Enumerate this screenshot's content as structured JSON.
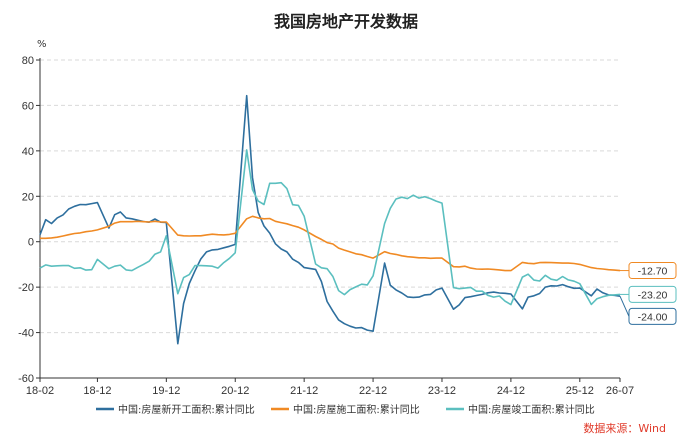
{
  "chart_data": {
    "type": "line",
    "title": "我国房地产开发数据",
    "ylabel": "%",
    "ylim": [
      -60,
      80
    ],
    "yticks": [
      -60,
      -40,
      -20,
      0,
      20,
      40,
      60,
      80
    ],
    "xlim": [
      "2018-02",
      "2026-07"
    ],
    "xticks": [
      {
        "label": "18-02",
        "date": "2018-02"
      },
      {
        "label": "18-12",
        "date": "2018-12"
      },
      {
        "label": "19-12",
        "date": "2019-12"
      },
      {
        "label": "20-12",
        "date": "2020-12"
      },
      {
        "label": "21-12",
        "date": "2021-12"
      },
      {
        "label": "22-12",
        "date": "2022-12"
      },
      {
        "label": "23-12",
        "date": "2023-12"
      },
      {
        "label": "24-12",
        "date": "2024-12"
      },
      {
        "label": "25-12",
        "date": "2025-12"
      },
      {
        "label": "26-07",
        "date": "2026-07"
      }
    ],
    "grid": "horizontal-dashed",
    "legend_position": "bottom",
    "source": "数据来源：Wind",
    "series": [
      {
        "name": "中国:房屋新开工面积:累计同比",
        "color": "#2e6f9e",
        "end_label": "-24.00",
        "points": [
          [
            "2018-02",
            3
          ],
          [
            "2018-03",
            9.7
          ],
          [
            "2018-04",
            8
          ],
          [
            "2018-05",
            10.5
          ],
          [
            "2018-06",
            11.8
          ],
          [
            "2018-07",
            14.4
          ],
          [
            "2018-08",
            15.6
          ],
          [
            "2018-09",
            16.4
          ],
          [
            "2018-10",
            16.3
          ],
          [
            "2018-11",
            16.8
          ],
          [
            "2018-12",
            17.2
          ],
          [
            "2019-02",
            6
          ],
          [
            "2019-03",
            11.9
          ],
          [
            "2019-04",
            13.1
          ],
          [
            "2019-05",
            10.5
          ],
          [
            "2019-06",
            10.1
          ],
          [
            "2019-07",
            9.5
          ],
          [
            "2019-08",
            8.9
          ],
          [
            "2019-09",
            8.6
          ],
          [
            "2019-10",
            10
          ],
          [
            "2019-11",
            8.6
          ],
          [
            "2019-12",
            8.5
          ],
          [
            "2020-02",
            -44.9
          ],
          [
            "2020-03",
            -27.2
          ],
          [
            "2020-04",
            -18.4
          ],
          [
            "2020-05",
            -12.8
          ],
          [
            "2020-06",
            -7.6
          ],
          [
            "2020-07",
            -4.5
          ],
          [
            "2020-08",
            -3.6
          ],
          [
            "2020-09",
            -3.4
          ],
          [
            "2020-10",
            -2.7
          ],
          [
            "2020-11",
            -2
          ],
          [
            "2020-12",
            -1.2
          ],
          [
            "2021-02",
            64.3
          ],
          [
            "2021-03",
            28.2
          ],
          [
            "2021-04",
            12.8
          ],
          [
            "2021-05",
            6.9
          ],
          [
            "2021-06",
            3.8
          ],
          [
            "2021-07",
            -0.9
          ],
          [
            "2021-08",
            -3.2
          ],
          [
            "2021-09",
            -4.5
          ],
          [
            "2021-10",
            -7.7
          ],
          [
            "2021-11",
            -9.1
          ],
          [
            "2021-12",
            -11.4
          ],
          [
            "2022-02",
            -12.2
          ],
          [
            "2022-03",
            -17.5
          ],
          [
            "2022-04",
            -26.3
          ],
          [
            "2022-05",
            -30.6
          ],
          [
            "2022-06",
            -34.4
          ],
          [
            "2022-07",
            -36.1
          ],
          [
            "2022-08",
            -37.2
          ],
          [
            "2022-09",
            -38
          ],
          [
            "2022-10",
            -37.8
          ],
          [
            "2022-11",
            -38.9
          ],
          [
            "2022-12",
            -39.4
          ],
          [
            "2023-02",
            -9.4
          ],
          [
            "2023-03",
            -19.2
          ],
          [
            "2023-04",
            -21.2
          ],
          [
            "2023-05",
            -22.6
          ],
          [
            "2023-06",
            -24.3
          ],
          [
            "2023-07",
            -24.5
          ],
          [
            "2023-08",
            -24.4
          ],
          [
            "2023-09",
            -23.4
          ],
          [
            "2023-10",
            -23.2
          ],
          [
            "2023-11",
            -21.2
          ],
          [
            "2023-12",
            -20.4
          ],
          [
            "2024-02",
            -29.7
          ],
          [
            "2024-03",
            -27.8
          ],
          [
            "2024-04",
            -24.6
          ],
          [
            "2024-05",
            -24.2
          ],
          [
            "2024-06",
            -23.7
          ],
          [
            "2024-07",
            -23.2
          ],
          [
            "2024-08",
            -22.5
          ],
          [
            "2024-09",
            -22.2
          ],
          [
            "2024-10",
            -22.6
          ],
          [
            "2024-11",
            -22.7
          ],
          [
            "2024-12",
            -23
          ],
          [
            "2025-02",
            -29.6
          ],
          [
            "2025-03",
            -24.4
          ],
          [
            "2025-04",
            -23.8
          ],
          [
            "2025-05",
            -22.8
          ],
          [
            "2025-06",
            -20
          ],
          [
            "2025-07",
            -19.4
          ],
          [
            "2025-08",
            -19.5
          ],
          [
            "2025-09",
            -18.9
          ],
          [
            "2025-10",
            -19.8
          ],
          [
            "2025-11",
            -20.5
          ],
          [
            "2025-12",
            -20.4
          ],
          [
            "2026-02",
            -23.8
          ],
          [
            "2026-03",
            -20.8
          ],
          [
            "2026-04",
            -22.5
          ],
          [
            "2026-05",
            -23.4
          ],
          [
            "2026-06",
            -23.6
          ],
          [
            "2026-07",
            -24
          ]
        ]
      },
      {
        "name": "中国:房屋施工面积:累计同比",
        "color": "#f08a24",
        "end_label": "-12.70",
        "points": [
          [
            "2018-02",
            1.5
          ],
          [
            "2018-03",
            1.5
          ],
          [
            "2018-04",
            1.7
          ],
          [
            "2018-05",
            2
          ],
          [
            "2018-06",
            2.5
          ],
          [
            "2018-07",
            3.1
          ],
          [
            "2018-08",
            3.6
          ],
          [
            "2018-09",
            3.9
          ],
          [
            "2018-10",
            4.4
          ],
          [
            "2018-11",
            4.7
          ],
          [
            "2018-12",
            5.2
          ],
          [
            "2019-02",
            6.8
          ],
          [
            "2019-03",
            8.2
          ],
          [
            "2019-04",
            8.8
          ],
          [
            "2019-05",
            8.8
          ],
          [
            "2019-06",
            8.8
          ],
          [
            "2019-07",
            9
          ],
          [
            "2019-08",
            8.8
          ],
          [
            "2019-09",
            8.7
          ],
          [
            "2019-10",
            9
          ],
          [
            "2019-11",
            8.7
          ],
          [
            "2019-12",
            8.7
          ],
          [
            "2020-02",
            2.9
          ],
          [
            "2020-03",
            2.6
          ],
          [
            "2020-04",
            2.5
          ],
          [
            "2020-05",
            2.6
          ],
          [
            "2020-06",
            2.6
          ],
          [
            "2020-07",
            3
          ],
          [
            "2020-08",
            3.3
          ],
          [
            "2020-09",
            3.1
          ],
          [
            "2020-10",
            3
          ],
          [
            "2020-11",
            3.2
          ],
          [
            "2020-12",
            3.7
          ],
          [
            "2021-02",
            10.1
          ],
          [
            "2021-03",
            11.2
          ],
          [
            "2021-04",
            10.5
          ],
          [
            "2021-05",
            10.1
          ],
          [
            "2021-06",
            10.2
          ],
          [
            "2021-07",
            9
          ],
          [
            "2021-08",
            8.4
          ],
          [
            "2021-09",
            7.9
          ],
          [
            "2021-10",
            7.1
          ],
          [
            "2021-11",
            6.4
          ],
          [
            "2021-12",
            5.2
          ],
          [
            "2022-02",
            2.3
          ],
          [
            "2022-03",
            1
          ],
          [
            "2022-04",
            -0.4
          ],
          [
            "2022-05",
            -1
          ],
          [
            "2022-06",
            -2.8
          ],
          [
            "2022-07",
            -3.7
          ],
          [
            "2022-08",
            -4.5
          ],
          [
            "2022-09",
            -5.3
          ],
          [
            "2022-10",
            -5.7
          ],
          [
            "2022-11",
            -6.5
          ],
          [
            "2022-12",
            -7.2
          ],
          [
            "2023-02",
            -4.4
          ],
          [
            "2023-03",
            -5.2
          ],
          [
            "2023-04",
            -5.6
          ],
          [
            "2023-05",
            -6.2
          ],
          [
            "2023-06",
            -6.6
          ],
          [
            "2023-07",
            -6.8
          ],
          [
            "2023-08",
            -7.1
          ],
          [
            "2023-09",
            -7.1
          ],
          [
            "2023-10",
            -7.3
          ],
          [
            "2023-11",
            -7.2
          ],
          [
            "2023-12",
            -7.2
          ],
          [
            "2024-02",
            -11
          ],
          [
            "2024-03",
            -11.1
          ],
          [
            "2024-04",
            -10.8
          ],
          [
            "2024-05",
            -11.6
          ],
          [
            "2024-06",
            -12
          ],
          [
            "2024-07",
            -12.1
          ],
          [
            "2024-08",
            -12
          ],
          [
            "2024-09",
            -12.2
          ],
          [
            "2024-10",
            -12.4
          ],
          [
            "2024-11",
            -12.7
          ],
          [
            "2024-12",
            -12.7
          ],
          [
            "2025-02",
            -9.1
          ],
          [
            "2025-03",
            -9.5
          ],
          [
            "2025-04",
            -9.7
          ],
          [
            "2025-05",
            -9.2
          ],
          [
            "2025-06",
            -9.1
          ],
          [
            "2025-07",
            -9.2
          ],
          [
            "2025-08",
            -9.3
          ],
          [
            "2025-09",
            -9.4
          ],
          [
            "2025-10",
            -9.4
          ],
          [
            "2025-11",
            -9.6
          ],
          [
            "2025-12",
            -10
          ],
          [
            "2026-02",
            -11.4
          ],
          [
            "2026-03",
            -11.8
          ],
          [
            "2026-04",
            -12
          ],
          [
            "2026-05",
            -12.3
          ],
          [
            "2026-06",
            -12.5
          ],
          [
            "2026-07",
            -12.7
          ]
        ]
      },
      {
        "name": "中国:房屋竣工面积:累计同比",
        "color": "#5bbfbf",
        "end_label": "-23.20",
        "points": [
          [
            "2018-02",
            -11.6
          ],
          [
            "2018-03",
            -10.2
          ],
          [
            "2018-04",
            -10.8
          ],
          [
            "2018-05",
            -10.6
          ],
          [
            "2018-06",
            -10.5
          ],
          [
            "2018-07",
            -10.5
          ],
          [
            "2018-08",
            -11.7
          ],
          [
            "2018-09",
            -11.5
          ],
          [
            "2018-10",
            -12.5
          ],
          [
            "2018-11",
            -12.3
          ],
          [
            "2018-12",
            -7.8
          ],
          [
            "2019-02",
            -11.9
          ],
          [
            "2019-03",
            -10.8
          ],
          [
            "2019-04",
            -10.3
          ],
          [
            "2019-05",
            -12.4
          ],
          [
            "2019-06",
            -12.7
          ],
          [
            "2019-07",
            -11.3
          ],
          [
            "2019-08",
            -10
          ],
          [
            "2019-09",
            -8.6
          ],
          [
            "2019-10",
            -5.5
          ],
          [
            "2019-11",
            -4.5
          ],
          [
            "2019-12",
            2.6
          ],
          [
            "2020-02",
            -22.9
          ],
          [
            "2020-03",
            -15.8
          ],
          [
            "2020-04",
            -14.5
          ],
          [
            "2020-05",
            -10.5
          ],
          [
            "2020-06",
            -10.5
          ],
          [
            "2020-07",
            -10.6
          ],
          [
            "2020-08",
            -10.8
          ],
          [
            "2020-09",
            -11.6
          ],
          [
            "2020-10",
            -9.2
          ],
          [
            "2020-11",
            -7.3
          ],
          [
            "2020-12",
            -4.9
          ],
          [
            "2021-02",
            40.4
          ],
          [
            "2021-03",
            22.9
          ],
          [
            "2021-04",
            17.9
          ],
          [
            "2021-05",
            16.4
          ],
          [
            "2021-06",
            25.7
          ],
          [
            "2021-07",
            25.7
          ],
          [
            "2021-08",
            26
          ],
          [
            "2021-09",
            23.4
          ],
          [
            "2021-10",
            16.3
          ],
          [
            "2021-11",
            16
          ],
          [
            "2021-12",
            11.2
          ],
          [
            "2022-02",
            -9.8
          ],
          [
            "2022-03",
            -11.5
          ],
          [
            "2022-04",
            -11.9
          ],
          [
            "2022-05",
            -15.3
          ],
          [
            "2022-06",
            -21.5
          ],
          [
            "2022-07",
            -23.3
          ],
          [
            "2022-08",
            -21.1
          ],
          [
            "2022-09",
            -19.9
          ],
          [
            "2022-10",
            -18.7
          ],
          [
            "2022-11",
            -19
          ],
          [
            "2022-12",
            -15
          ],
          [
            "2023-02",
            8
          ],
          [
            "2023-03",
            14.7
          ],
          [
            "2023-04",
            18.8
          ],
          [
            "2023-05",
            19.6
          ],
          [
            "2023-06",
            19
          ],
          [
            "2023-07",
            20.5
          ],
          [
            "2023-08",
            19.2
          ],
          [
            "2023-09",
            19.8
          ],
          [
            "2023-10",
            19
          ],
          [
            "2023-11",
            17.9
          ],
          [
            "2023-12",
            17
          ],
          [
            "2024-02",
            -20.2
          ],
          [
            "2024-03",
            -20.7
          ],
          [
            "2024-04",
            -20.4
          ],
          [
            "2024-05",
            -20.1
          ],
          [
            "2024-06",
            -21.8
          ],
          [
            "2024-07",
            -21.8
          ],
          [
            "2024-08",
            -23.6
          ],
          [
            "2024-09",
            -24.4
          ],
          [
            "2024-10",
            -23.9
          ],
          [
            "2024-11",
            -26.2
          ],
          [
            "2024-12",
            -27.7
          ],
          [
            "2025-02",
            -15.6
          ],
          [
            "2025-03",
            -14.3
          ],
          [
            "2025-04",
            -16.9
          ],
          [
            "2025-05",
            -17.3
          ],
          [
            "2025-06",
            -14.8
          ],
          [
            "2025-07",
            -16.5
          ],
          [
            "2025-08",
            -17
          ],
          [
            "2025-09",
            -15.3
          ],
          [
            "2025-10",
            -16.8
          ],
          [
            "2025-11",
            -17.4
          ],
          [
            "2025-12",
            -18.5
          ],
          [
            "2026-02",
            -27.6
          ],
          [
            "2026-03",
            -25.1
          ],
          [
            "2026-04",
            -24.2
          ],
          [
            "2026-05",
            -23.6
          ],
          [
            "2026-06",
            -23.4
          ],
          [
            "2026-07",
            -23.2
          ]
        ]
      }
    ]
  }
}
